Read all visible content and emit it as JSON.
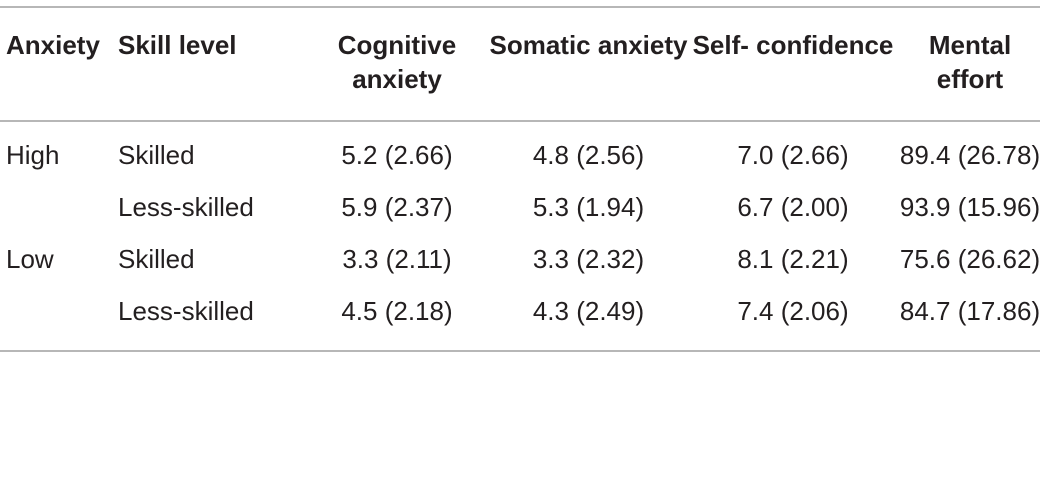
{
  "table": {
    "headers": {
      "anxiety": "Anxiety",
      "skill_level": "Skill level",
      "cognitive_anxiety": "Cognitive anxiety",
      "somatic_anxiety": "Somatic anxiety",
      "self_confidence": "Self- confidence",
      "mental_effort": "Mental effort"
    },
    "rows": [
      {
        "anxiety": "High",
        "skill_level": "Skilled",
        "cognitive_anxiety": "5.2 (2.66)",
        "somatic_anxiety": "4.8 (2.56)",
        "self_confidence": "7.0 (2.66)",
        "mental_effort": "89.4 (26.78)"
      },
      {
        "anxiety": "",
        "skill_level": "Less-skilled",
        "cognitive_anxiety": "5.9 (2.37)",
        "somatic_anxiety": "5.3 (1.94)",
        "self_confidence": "6.7 (2.00)",
        "mental_effort": "93.9 (15.96)"
      },
      {
        "anxiety": "Low",
        "skill_level": "Skilled",
        "cognitive_anxiety": "3.3 (2.11)",
        "somatic_anxiety": "3.3 (2.32)",
        "self_confidence": "8.1 (2.21)",
        "mental_effort": "75.6 (26.62)"
      },
      {
        "anxiety": "",
        "skill_level": "Less-skilled",
        "cognitive_anxiety": "4.5 (2.18)",
        "somatic_anxiety": "4.3 (2.49)",
        "self_confidence": "7.4 (2.06)",
        "mental_effort": "84.7 (17.86)"
      }
    ]
  }
}
